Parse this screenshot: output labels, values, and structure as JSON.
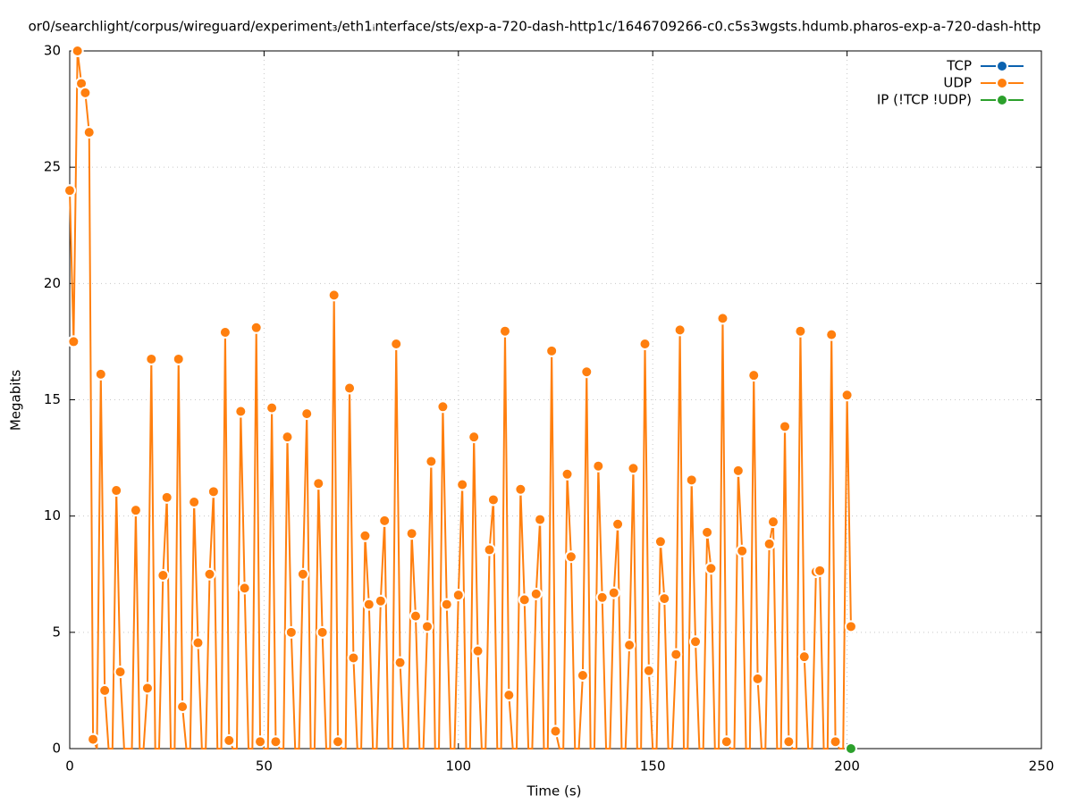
{
  "chart_data": {
    "type": "line",
    "title": "or0/searchlight/corpus/wireguard/experiment₃/eth1ᵢnterface/sts/exp-a-720-dash-http1c/1646709266-c0.c5s3wgsts.hdumb.pharos-exp-a-720-dash-http",
    "x_label": "Time (s)",
    "y_label": "Megabits",
    "xlim": [
      0,
      250
    ],
    "xticks": [
      0,
      50,
      100,
      150,
      200,
      250
    ],
    "ylim": [
      0,
      30
    ],
    "yticks": [
      0,
      5,
      10,
      15,
      20,
      25,
      30
    ],
    "grid": true,
    "legend": "top-right",
    "series": [
      {
        "name": "TCP",
        "color": "#0b62af",
        "x": [],
        "values": []
      },
      {
        "name": "UDP",
        "color": "#ff7f0e",
        "x": [
          0,
          1,
          2,
          3,
          4,
          5,
          6,
          7,
          8,
          9,
          10,
          11,
          12,
          13,
          14,
          15,
          16,
          17,
          18,
          19,
          20,
          21,
          22,
          23,
          24,
          25,
          26,
          27,
          28,
          29,
          30,
          31,
          32,
          33,
          34,
          35,
          36,
          37,
          38,
          39,
          40,
          41,
          42,
          43,
          44,
          45,
          46,
          47,
          48,
          49,
          50,
          51,
          52,
          53,
          54,
          55,
          56,
          57,
          58,
          59,
          60,
          61,
          62,
          63,
          64,
          65,
          66,
          67,
          68,
          69,
          70,
          71,
          72,
          73,
          74,
          75,
          76,
          77,
          78,
          79,
          80,
          81,
          82,
          83,
          84,
          85,
          86,
          87,
          88,
          89,
          90,
          91,
          92,
          93,
          94,
          95,
          96,
          97,
          98,
          99,
          100,
          101,
          102,
          103,
          104,
          105,
          106,
          107,
          108,
          109,
          110,
          111,
          112,
          113,
          114,
          115,
          116,
          117,
          118,
          119,
          120,
          121,
          122,
          123,
          124,
          125,
          126,
          127,
          128,
          129,
          130,
          131,
          132,
          133,
          134,
          135,
          136,
          137,
          138,
          139,
          140,
          141,
          142,
          143,
          144,
          145,
          146,
          147,
          148,
          149,
          150,
          151,
          152,
          153,
          154,
          155,
          156,
          157,
          158,
          159,
          160,
          161,
          162,
          163,
          164,
          165,
          166,
          167,
          168,
          169,
          170,
          171,
          172,
          173,
          174,
          175,
          176,
          177,
          178,
          179,
          180,
          181,
          182,
          183,
          184,
          185,
          186,
          187,
          188,
          189,
          190,
          191,
          192,
          193,
          194,
          195,
          196,
          197,
          198,
          199,
          200,
          201
        ],
        "values": [
          24,
          17.5,
          30,
          28.6,
          28.2,
          26.5,
          0.4,
          0,
          16.1,
          2.5,
          0,
          0,
          11.1,
          3.3,
          0,
          0,
          0,
          10.25,
          0,
          0,
          2.6,
          16.75,
          0,
          0,
          7.45,
          10.8,
          0,
          0,
          16.75,
          1.8,
          0,
          0,
          10.6,
          4.55,
          0,
          0,
          7.5,
          11.05,
          0,
          0,
          17.9,
          0.35,
          0,
          0,
          14.5,
          6.9,
          0,
          0,
          18.1,
          0.3,
          0,
          0,
          14.65,
          0.3,
          0,
          0,
          13.4,
          5,
          0,
          0,
          7.5,
          14.4,
          0,
          0,
          11.4,
          5,
          0,
          0,
          19.5,
          0.3,
          0,
          0,
          15.5,
          3.9,
          0,
          0,
          9.15,
          6.2,
          0,
          0,
          6.35,
          9.8,
          0,
          0,
          17.4,
          3.7,
          0,
          0,
          9.25,
          5.7,
          0,
          0,
          5.25,
          12.35,
          0,
          0,
          14.7,
          6.2,
          0,
          0,
          6.6,
          11.35,
          0,
          0,
          13.4,
          4.2,
          0,
          0,
          8.55,
          10.7,
          0,
          0,
          17.95,
          2.3,
          0,
          0,
          11.15,
          6.4,
          0,
          0,
          6.65,
          9.85,
          0,
          0,
          17.1,
          0.75,
          0,
          0,
          11.8,
          8.25,
          0,
          0,
          3.15,
          16.2,
          0,
          0,
          12.15,
          6.5,
          0,
          0,
          6.7,
          9.65,
          0,
          0,
          4.45,
          12.05,
          0,
          0,
          17.4,
          3.35,
          0,
          0,
          8.9,
          6.45,
          0,
          0,
          4.05,
          18,
          0,
          0,
          11.55,
          4.6,
          0,
          0,
          9.3,
          7.75,
          0,
          0,
          18.5,
          0.3,
          0,
          0,
          11.95,
          8.5,
          0,
          0,
          16.05,
          3,
          0,
          0,
          8.8,
          9.75,
          0,
          0,
          13.85,
          0.3,
          0,
          0,
          17.95,
          3.95,
          0,
          0,
          7.6,
          7.65,
          0,
          0,
          17.8,
          0.3,
          0,
          0,
          15.2,
          5.25
        ]
      },
      {
        "name": "IP (!TCP  !UDP)",
        "color": "#2ca02c",
        "x": [
          201
        ],
        "values": [
          0
        ]
      }
    ]
  }
}
